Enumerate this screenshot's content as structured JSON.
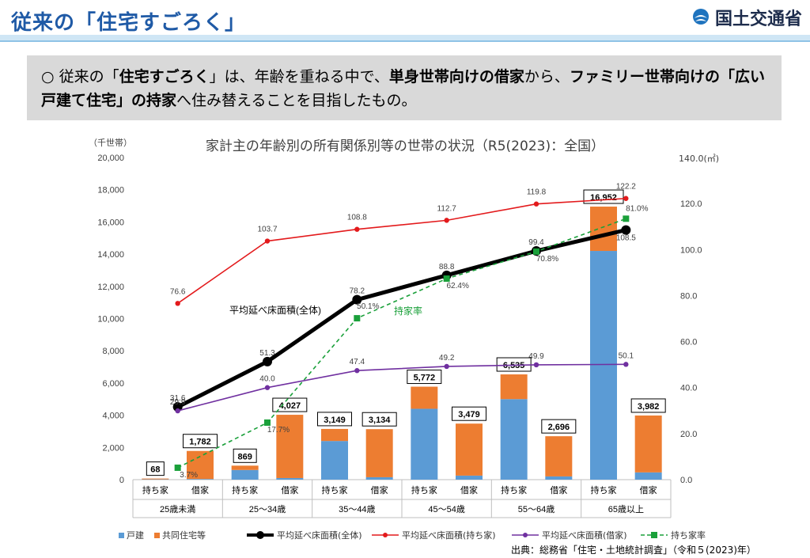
{
  "header": {
    "title": "従来の「住宅すごろく」",
    "ministry": "国土交通省"
  },
  "summary": {
    "bullet": "○",
    "text_parts": [
      {
        "text": "従来の「",
        "bold": false
      },
      {
        "text": "住宅すごろく",
        "bold": true
      },
      {
        "text": "」は、年齢を重ねる中で、",
        "bold": false
      },
      {
        "text": "単身世帯向けの借家",
        "bold": true
      },
      {
        "text": "から、",
        "bold": false
      },
      {
        "text": "ファミリー世帯向けの「広い戸建て住宅」の持家",
        "bold": true
      },
      {
        "text": "へ住み替えることを目指したもの。",
        "bold": false
      }
    ]
  },
  "source": "出典：総務省「住宅・土地統計調査」（令和５(2023)年）",
  "chart_data": {
    "type": "bar",
    "title": "家計主の年齢別の所有関係別等の世帯の状況（R5(2023)：全国）",
    "ylabel": "（千世帯）",
    "y2label": "140.0(㎡)",
    "ylim": [
      0,
      20000
    ],
    "y2lim": [
      0,
      140
    ],
    "yticks": [
      "0",
      "2,000",
      "4,000",
      "6,000",
      "8,000",
      "10,000",
      "12,000",
      "14,000",
      "16,000",
      "18,000",
      "20,000"
    ],
    "y2ticks": [
      "0.0",
      "20.0",
      "40.0",
      "60.0",
      "80.0",
      "100.0",
      "120.0"
    ],
    "age_groups": [
      "25歳未満",
      "25～34歳",
      "35～44歳",
      "45～54歳",
      "55～64歳",
      "65歳以上"
    ],
    "tenure": [
      "持ち家",
      "借家"
    ],
    "bars": {
      "owned": {
        "detached": [
          20,
          600,
          2400,
          4400,
          5000,
          14200
        ],
        "shared": [
          48,
          269,
          749,
          1372,
          1535,
          2752
        ],
        "total_labels": [
          "68",
          "869",
          "3,149",
          "5,772",
          "6,535",
          "16,952"
        ]
      },
      "rented": {
        "detached": [
          40,
          100,
          150,
          250,
          200,
          450
        ],
        "shared": [
          1742,
          3927,
          2984,
          3229,
          2496,
          3532
        ],
        "total_labels": [
          "1,782",
          "4,027",
          "3,134",
          "3,479",
          "2,696",
          "3,982"
        ]
      }
    },
    "series": [
      {
        "name": "平均延べ床面積(全体)",
        "color": "#000000",
        "values": [
          31.6,
          51.3,
          78.2,
          88.8,
          99.4,
          108.5
        ],
        "labels": [
          "31.6",
          "51.3",
          "78.2",
          "88.8",
          "99.4",
          "108.5"
        ]
      },
      {
        "name": "平均延べ床面積(持ち家)",
        "color": "#e31a1c",
        "values": [
          76.6,
          103.7,
          108.8,
          112.7,
          119.8,
          122.2
        ],
        "labels": [
          "76.6",
          "103.7",
          "108.8",
          "112.7",
          "119.8",
          "122.2"
        ]
      },
      {
        "name": "平均延べ床面積(借家)",
        "color": "#7030a0",
        "values": [
          29.9,
          40.0,
          47.4,
          49.2,
          49.9,
          50.1
        ],
        "labels": [
          "29.9",
          "40.0",
          "47.4",
          "49.2",
          "49.9",
          "50.1"
        ]
      },
      {
        "name": "持ち家率",
        "color": "#1aa03a",
        "values": [
          3.7,
          17.7,
          50.1,
          62.4,
          70.8,
          81.0
        ],
        "labels": [
          "3.7%",
          "17.7%",
          "50.1%",
          "62.4%",
          "70.8%",
          "81.0%"
        ]
      }
    ],
    "annotations": [
      "平均延べ床面積(全体)",
      "持家率"
    ],
    "legend": [
      {
        "name": "戸建",
        "color": "#5b9bd5",
        "kind": "square"
      },
      {
        "name": "共同住宅等",
        "color": "#ed7d31",
        "kind": "square"
      },
      {
        "name": "平均延べ床面積(全体)",
        "color": "#000000",
        "kind": "line-thick"
      },
      {
        "name": "平均延べ床面積(持ち家)",
        "color": "#e31a1c",
        "kind": "line"
      },
      {
        "name": "平均延べ床面積(借家)",
        "color": "#7030a0",
        "kind": "line"
      },
      {
        "name": "持ち家率",
        "color": "#1aa03a",
        "kind": "dash"
      }
    ],
    "legend_position": "bottom"
  }
}
